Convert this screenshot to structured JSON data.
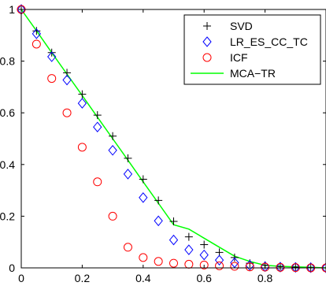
{
  "chart_data": {
    "type": "scatter",
    "xlim": [
      0,
      1
    ],
    "ylim": [
      0,
      1
    ],
    "x_ticks": [
      0,
      0.2,
      0.4,
      0.6,
      0.8
    ],
    "y_ticks": [
      0,
      0.2,
      0.4,
      0.6,
      0.8,
      1
    ],
    "x_tick_labels": [
      "0",
      "0.2",
      "0.4",
      "0.6",
      "0.8"
    ],
    "y_tick_labels": [
      "0",
      "0.2",
      "0.4",
      "0.6",
      "0.8",
      "1"
    ],
    "grid": false,
    "legend_position": "top-right",
    "series": [
      {
        "name": "SVD",
        "marker": "plus",
        "color": "#000000",
        "x": [
          0,
          0.05,
          0.1,
          0.15,
          0.2,
          0.25,
          0.3,
          0.35,
          0.4,
          0.45,
          0.5,
          0.55,
          0.6,
          0.65,
          0.7,
          0.75,
          0.8,
          0.85,
          0.9,
          0.95,
          1
        ],
        "y": [
          1,
          0.917,
          0.833,
          0.755,
          0.672,
          0.591,
          0.51,
          0.424,
          0.343,
          0.261,
          0.18,
          0.12,
          0.09,
          0.06,
          0.04,
          0.018,
          0.01,
          0.005,
          0.003,
          0.001,
          0.0
        ]
      },
      {
        "name": "LR_ES_CC_TC",
        "marker": "diamond",
        "color": "#0000ff",
        "x": [
          0,
          0.05,
          0.1,
          0.15,
          0.2,
          0.25,
          0.3,
          0.35,
          0.4,
          0.45,
          0.5,
          0.55,
          0.6,
          0.65,
          0.7,
          0.75,
          0.8,
          0.85,
          0.9,
          0.95,
          1
        ],
        "y": [
          1,
          0.906,
          0.817,
          0.727,
          0.637,
          0.545,
          0.455,
          0.363,
          0.272,
          0.182,
          0.108,
          0.07,
          0.05,
          0.03,
          0.02,
          0.01,
          0.005,
          0.003,
          0.002,
          0.001,
          0.0
        ]
      },
      {
        "name": "ICF",
        "marker": "circle",
        "color": "#ff0000",
        "x": [
          0,
          0.05,
          0.1,
          0.15,
          0.2,
          0.25,
          0.3,
          0.35,
          0.4,
          0.45,
          0.5,
          0.55,
          0.6,
          0.65,
          0.7,
          0.75,
          0.8,
          0.85,
          0.9,
          0.95,
          1
        ],
        "y": [
          1,
          0.866,
          0.733,
          0.6,
          0.467,
          0.333,
          0.2,
          0.08,
          0.04,
          0.025,
          0.018,
          0.014,
          0.011,
          0.008,
          0.006,
          0.004,
          0.003,
          0.002,
          0.001,
          0.0,
          0.0
        ]
      },
      {
        "name": "MCA−TR",
        "marker": "line",
        "color": "#00ff00",
        "x": [
          0,
          0.05,
          0.1,
          0.15,
          0.2,
          0.25,
          0.3,
          0.35,
          0.4,
          0.45,
          0.5,
          0.55,
          0.6,
          0.65,
          0.7,
          0.75,
          0.8,
          0.85,
          0.9,
          0.95,
          1
        ],
        "y": [
          1,
          0.917,
          0.833,
          0.75,
          0.667,
          0.583,
          0.5,
          0.417,
          0.333,
          0.25,
          0.167,
          0.15,
          0.115,
          0.08,
          0.045,
          0.025,
          0.01,
          0.006,
          0.004,
          0.002,
          0.0
        ]
      }
    ]
  }
}
